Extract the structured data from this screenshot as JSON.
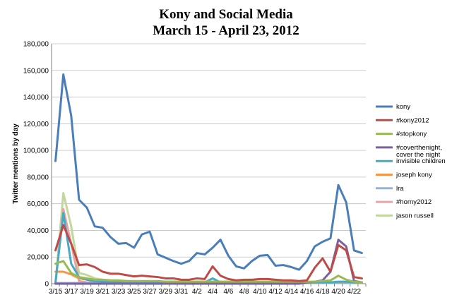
{
  "chart_data": {
    "type": "line",
    "title": "Kony and Social Media",
    "subtitle": "March 15 - April 23, 2012",
    "ylabel": "Twitter mentions by day",
    "xlabel": "",
    "ylim": [
      0,
      180000
    ],
    "yticks": [
      "0",
      "20,000",
      "40,000",
      "60,000",
      "80,000",
      "100,000",
      "120,000",
      "140,000",
      "160,000",
      "180,000"
    ],
    "x": [
      "3/15",
      "3/16",
      "3/17",
      "3/18",
      "3/19",
      "3/20",
      "3/21",
      "3/22",
      "3/23",
      "3/24",
      "3/25",
      "3/26",
      "3/27",
      "3/28",
      "3/29",
      "3/30",
      "3/31",
      "4/1",
      "4/2",
      "4/3",
      "4/4",
      "4/5",
      "4/6",
      "4/7",
      "4/8",
      "4/9",
      "4/10",
      "4/11",
      "4/12",
      "4/13",
      "4/14",
      "4/15",
      "4/16",
      "4/17",
      "4/18",
      "4/19",
      "4/20",
      "4/21",
      "4/22",
      "4/23"
    ],
    "xtick_labels": [
      "3/15",
      "3/17",
      "3/19",
      "3/21",
      "3/23",
      "3/25",
      "3/27",
      "3/29",
      "3/31",
      "4/2",
      "4/4",
      "4/6",
      "4/8",
      "4/10",
      "4/12",
      "4/14",
      "4/16",
      "4/18",
      "4/20",
      "4/22"
    ],
    "legend_position": "right",
    "grid": "horizontal",
    "series": [
      {
        "name": "kony",
        "color": "#4a7ebb",
        "values": [
          92000,
          157000,
          126000,
          63000,
          57000,
          43000,
          42000,
          35000,
          30000,
          30500,
          27000,
          37000,
          39000,
          22000,
          19500,
          17000,
          15000,
          17000,
          23000,
          22000,
          27000,
          33000,
          21000,
          13000,
          11500,
          17000,
          21000,
          21500,
          13500,
          14000,
          12500,
          10500,
          17000,
          28000,
          31500,
          34000,
          74000,
          61000,
          25000,
          23000
        ]
      },
      {
        "name": "#kony2012",
        "color": "#be4b48",
        "values": [
          25000,
          44000,
          30000,
          14000,
          14500,
          12500,
          9000,
          7500,
          7500,
          6500,
          5500,
          6000,
          5500,
          5000,
          4000,
          4000,
          3000,
          3000,
          4000,
          3500,
          13000,
          6000,
          3500,
          2500,
          3000,
          3000,
          3500,
          3500,
          3000,
          2500,
          2500,
          2000,
          2500,
          12000,
          19000,
          9000,
          29000,
          25000,
          5000,
          4000
        ]
      },
      {
        "name": "#stopkony",
        "color": "#98b954",
        "values": [
          15000,
          17000,
          8000,
          5000,
          4000,
          3000,
          3000,
          2500,
          2500,
          2000,
          2000,
          2000,
          2000,
          2000,
          1500,
          1500,
          1500,
          1500,
          1500,
          1500,
          1500,
          1500,
          1500,
          1500,
          1500,
          1500,
          1500,
          1500,
          1500,
          1500,
          1500,
          1500,
          1500,
          1500,
          2000,
          2500,
          6000,
          3000,
          1500,
          1000
        ]
      },
      {
        "name": "#coverthenight, cover the night",
        "color": "#7d60a0",
        "values": [
          0,
          0,
          0,
          0,
          0,
          0,
          0,
          0,
          0,
          0,
          0,
          0,
          0,
          0,
          0,
          0,
          0,
          0,
          0,
          0,
          0,
          0,
          0,
          0,
          0,
          0,
          0,
          0,
          0,
          0,
          0,
          0,
          1000,
          1500,
          2500,
          9000,
          33000,
          28000,
          2000,
          1000
        ]
      },
      {
        "name": "invisible children",
        "color": "#46aac5",
        "values": [
          1000,
          53000,
          15000,
          5000,
          3000,
          2000,
          1500,
          1500,
          1500,
          1000,
          1000,
          1000,
          1000,
          1000,
          1000,
          1000,
          1000,
          1000,
          1000,
          1000,
          4000,
          1000,
          1000,
          1000,
          1000,
          1000,
          1000,
          1000,
          1000,
          1000,
          1000,
          1000,
          1000,
          1000,
          1000,
          1000,
          1500,
          1500,
          1000,
          1000
        ]
      },
      {
        "name": "joseph kony",
        "color": "#f79646",
        "values": [
          9000,
          9000,
          7000,
          4000,
          3000,
          2500,
          2500,
          2000,
          2000,
          2000,
          1500,
          1500,
          1500,
          1500,
          1500,
          1500,
          1500,
          1500,
          1500,
          1500,
          1500,
          1500,
          1000,
          1000,
          1000,
          1000,
          1000,
          1000,
          1000,
          1000,
          1000,
          1000,
          1000,
          1000,
          1000,
          1000,
          1000,
          1000,
          1000,
          1000
        ]
      },
      {
        "name": "lra",
        "color": "#95b3d7",
        "values": [
          500,
          500,
          500,
          500,
          500,
          500,
          500,
          500,
          500,
          500,
          500,
          500,
          500,
          500,
          500,
          500,
          500,
          500,
          500,
          500,
          500,
          500,
          500,
          500,
          500,
          500,
          500,
          500,
          500,
          500,
          500,
          500,
          500,
          500,
          500,
          500,
          500,
          500,
          500,
          500
        ]
      },
      {
        "name": "#horny2012",
        "color": "#e6a4a4",
        "values": [
          0,
          56000,
          30000,
          2000,
          1000,
          1000,
          500,
          500,
          500,
          500,
          500,
          500,
          500,
          500,
          500,
          500,
          500,
          500,
          500,
          500,
          500,
          500,
          500,
          500,
          500,
          500,
          500,
          500,
          500,
          500,
          500,
          500,
          500,
          500,
          500,
          500,
          500,
          500,
          500,
          500
        ]
      },
      {
        "name": "jason russell",
        "color": "#c3d69b",
        "values": [
          0,
          68000,
          43000,
          8000,
          6500,
          4000,
          3000,
          2500,
          2000,
          2000,
          1500,
          1500,
          1500,
          1500,
          1000,
          1000,
          1000,
          1000,
          1000,
          1000,
          1000,
          1000,
          1000,
          1000,
          1000,
          1000,
          1000,
          1000,
          1000,
          1000,
          1000,
          1000,
          1000,
          1000,
          1000,
          1000,
          1000,
          1000,
          1000,
          1000
        ]
      }
    ]
  }
}
